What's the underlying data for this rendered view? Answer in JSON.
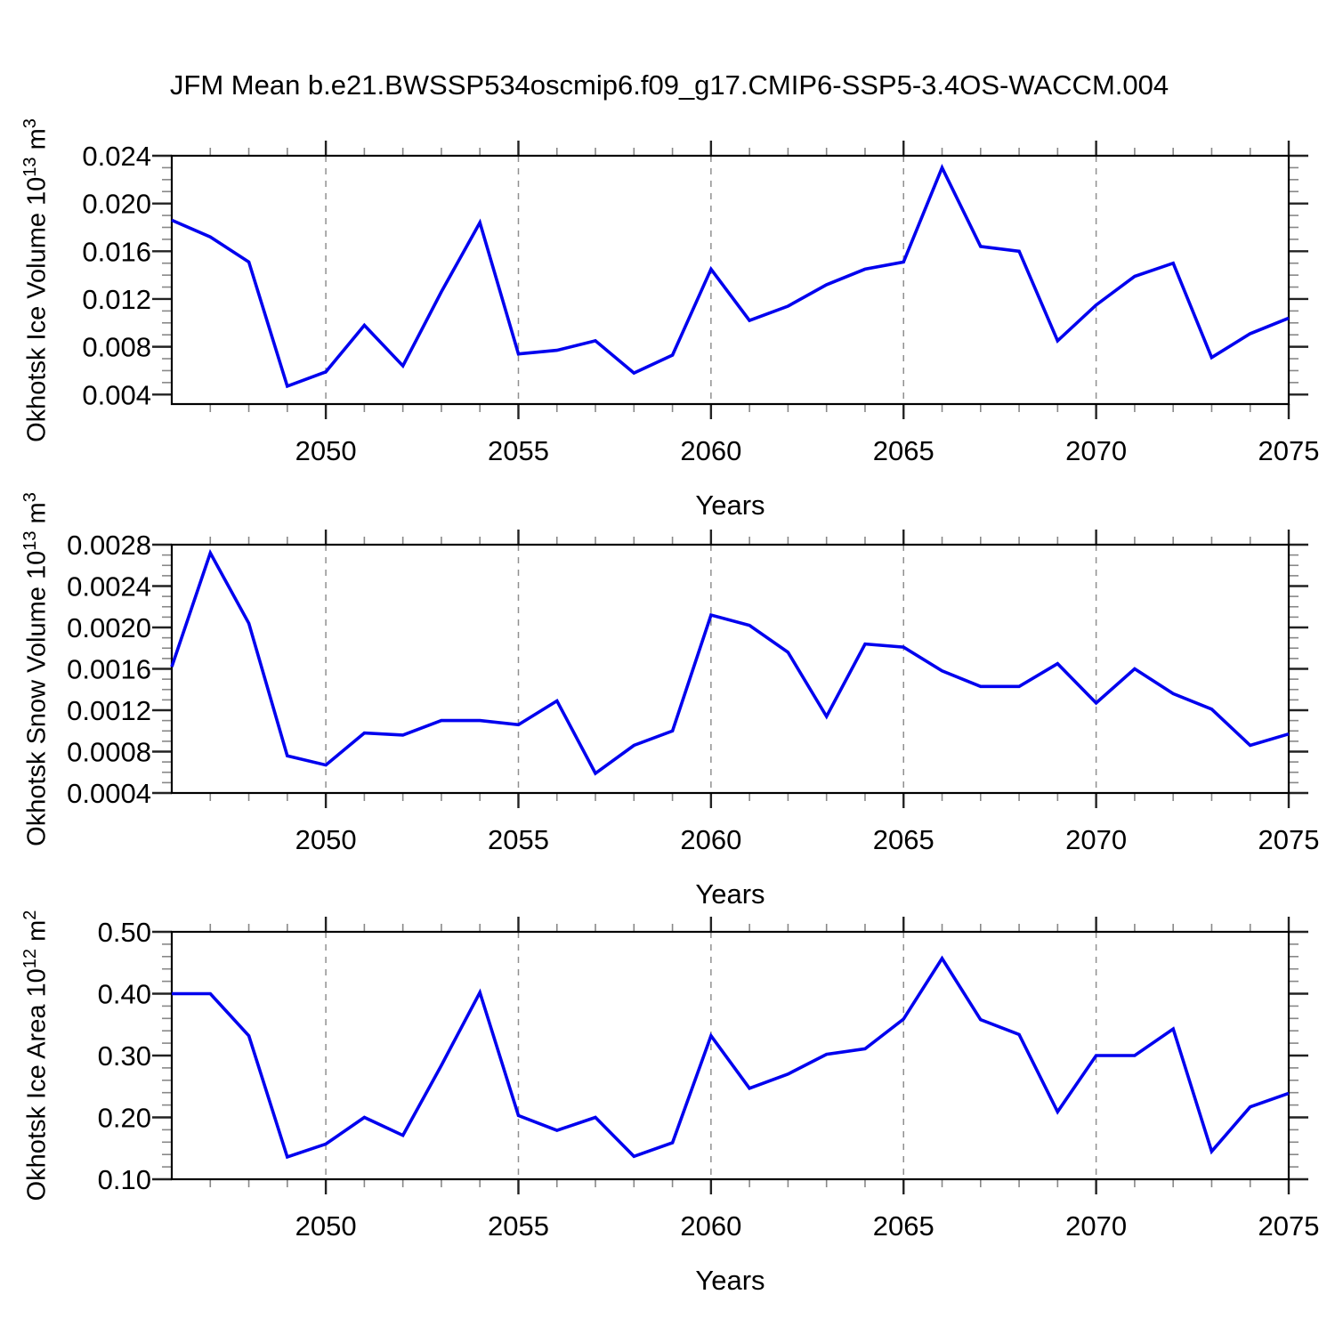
{
  "title": "JFM Mean b.e21.BWSSP534oscmip6.f09_g17.CMIP6-SSP5-3.4OS-WACCM.004",
  "colors": {
    "line": "#0000ee",
    "grid": "#909090",
    "frame": "#000000",
    "major_tick": "#222222",
    "minor_tick": "#888888"
  },
  "x_axis": {
    "label": "Years",
    "range": [
      2046,
      2075
    ],
    "years": [
      2046,
      2047,
      2048,
      2049,
      2050,
      2051,
      2052,
      2053,
      2054,
      2055,
      2056,
      2057,
      2058,
      2059,
      2060,
      2061,
      2062,
      2063,
      2064,
      2065,
      2066,
      2067,
      2068,
      2069,
      2070,
      2071,
      2072,
      2073,
      2074,
      2075
    ],
    "major_ticks": [
      2050,
      2055,
      2060,
      2065,
      2070,
      2075
    ],
    "tick_labels": [
      "2050",
      "2055",
      "2060",
      "2065",
      "2070",
      "2075"
    ],
    "gridline_years": [
      2050,
      2055,
      2060,
      2065,
      2070
    ]
  },
  "chart_data": [
    {
      "type": "line",
      "id": "ice-volume",
      "ylabel": {
        "base": "Okhotsk Ice Volume 10",
        "base_exp": "13",
        "unit": " m",
        "unit_exp": "3"
      },
      "ylim": [
        0.0032,
        0.024
      ],
      "ytick_values": [
        0.004,
        0.008,
        0.012,
        0.016,
        0.02,
        0.024
      ],
      "ytick_labels": [
        "0.004",
        "0.008",
        "0.012",
        "0.016",
        "0.020",
        "0.024"
      ],
      "minors_between_majors": 3,
      "grid": "dashed-vertical",
      "legend": "none",
      "values": [
        0.0186,
        0.0172,
        0.0151,
        0.0047,
        0.0059,
        0.0098,
        0.0064,
        0.0126,
        0.0184,
        0.0074,
        0.0077,
        0.0085,
        0.0058,
        0.0073,
        0.0145,
        0.0102,
        0.0114,
        0.0132,
        0.0145,
        0.0151,
        0.023,
        0.0164,
        0.016,
        0.0085,
        0.0115,
        0.0139,
        0.015,
        0.0071,
        0.0091,
        0.0104
      ]
    },
    {
      "type": "line",
      "id": "snow-volume",
      "ylabel": {
        "base": "Okhotsk Snow Volume 10",
        "base_exp": "13",
        "unit": " m",
        "unit_exp": "3"
      },
      "ylim": [
        0.0004,
        0.0028
      ],
      "ytick_values": [
        0.0004,
        0.0008,
        0.0012,
        0.0016,
        0.002,
        0.0024,
        0.0028
      ],
      "ytick_labels": [
        "0.0004",
        "0.0008",
        "0.0012",
        "0.0016",
        "0.0020",
        "0.0024",
        "0.0028"
      ],
      "minors_between_majors": 3,
      "grid": "dashed-vertical",
      "legend": "none",
      "values": [
        0.00162,
        0.00272,
        0.00204,
        0.00076,
        0.00067,
        0.00098,
        0.00096,
        0.0011,
        0.0011,
        0.00106,
        0.00129,
        0.00059,
        0.00086,
        0.001,
        0.00212,
        0.00202,
        0.00176,
        0.00114,
        0.00184,
        0.00181,
        0.00158,
        0.00143,
        0.00143,
        0.00165,
        0.00127,
        0.0016,
        0.00136,
        0.00121,
        0.00086,
        0.00097
      ]
    },
    {
      "type": "line",
      "id": "ice-area",
      "ylabel": {
        "base": "Okhotsk Ice Area 10",
        "base_exp": "12",
        "unit": " m",
        "unit_exp": "2"
      },
      "ylim": [
        0.1,
        0.5
      ],
      "ytick_values": [
        0.1,
        0.2,
        0.3,
        0.4,
        0.5
      ],
      "ytick_labels": [
        "0.10",
        "0.20",
        "0.30",
        "0.40",
        "0.50"
      ],
      "minors_between_majors": 4,
      "grid": "dashed-vertical",
      "legend": "none",
      "values": [
        0.4,
        0.4,
        0.332,
        0.136,
        0.157,
        0.2,
        0.171,
        0.284,
        0.402,
        0.203,
        0.179,
        0.2,
        0.137,
        0.159,
        0.332,
        0.247,
        0.27,
        0.302,
        0.311,
        0.359,
        0.457,
        0.358,
        0.334,
        0.209,
        0.3,
        0.3,
        0.343,
        0.145,
        0.217,
        0.239
      ]
    }
  ]
}
